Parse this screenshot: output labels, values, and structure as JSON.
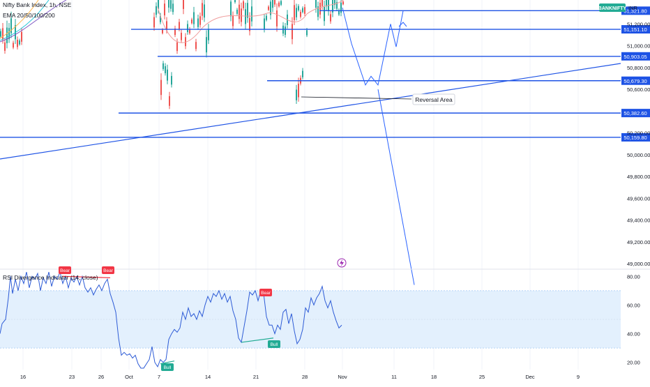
{
  "header": {
    "symbol_line": "Nifty Bank Index, 1h, NSE",
    "indicator_line": "EMA 20/50/100/200",
    "ticker_badge": "BANKNIFTY",
    "currency": "INR"
  },
  "rsi_panel": {
    "title": "RSI Divergence Indicator (14, close)",
    "labels": [
      {
        "text": "Bear",
        "kind": "bear"
      },
      {
        "text": "Bear",
        "kind": "bear"
      },
      {
        "text": "Bear",
        "kind": "bear"
      },
      {
        "text": "Bull",
        "kind": "bull"
      },
      {
        "text": "Bull",
        "kind": "bull"
      }
    ]
  },
  "annotation": {
    "text": "Reversal Area"
  },
  "colors": {
    "up": "#26a69a",
    "down": "#ef5350",
    "line": "#2962ff",
    "level": "#1e53e5",
    "rsi": "#2d5bd6",
    "bear": "#f23645",
    "bull": "#22ab94"
  },
  "chart_data": [
    {
      "type": "line",
      "title": "Nifty Bank Index, 1h, NSE",
      "xlabel": "",
      "ylabel": "",
      "x_tick_labels": [
        "16",
        "23",
        "26",
        "Oct",
        "7",
        "14",
        "21",
        "28",
        "Nov",
        "11",
        "18",
        "25",
        "Dec",
        "9"
      ],
      "y_tick_labels": [
        "51,200.00",
        "51,000.00",
        "50,800.00",
        "50,600.00",
        "50,200.00",
        "50,000.00",
        "49,800.00",
        "49,600.00",
        "49,400.00",
        "49,200.00",
        "49,000.00"
      ],
      "ylim": [
        48950,
        51420
      ],
      "horizontal_levels": [
        {
          "value": 51321.8,
          "label": "51,321.80"
        },
        {
          "value": 51151.1,
          "label": "51,151.10"
        },
        {
          "value": 50903.05,
          "label": "50,903.05"
        },
        {
          "value": 50679.3,
          "label": "50,679.30"
        },
        {
          "value": 50382.6,
          "label": "50,382.60"
        },
        {
          "value": 50159.8,
          "label": "50,159.80"
        }
      ],
      "projected_path": [
        {
          "x": "Nov",
          "y": 51350
        },
        {
          "x": "Nov",
          "y": 51020
        },
        {
          "x": "Nov",
          "y": 50640
        },
        {
          "x": "Nov",
          "y": 50720
        },
        {
          "x": "Nov",
          "y": 50640
        },
        {
          "x": "Nov",
          "y": 51200
        },
        {
          "x": "11",
          "y": 50990
        },
        {
          "x": "11",
          "y": 51320
        }
      ],
      "projected_drop": [
        {
          "x": "Nov",
          "y": 50600
        },
        {
          "x": "18",
          "y": 48780
        }
      ]
    },
    {
      "type": "line",
      "title": "RSI Divergence Indicator (14, close)",
      "y_tick_labels": [
        "80.00",
        "60.00",
        "40.00",
        "20.00"
      ],
      "ylim": [
        15,
        85
      ],
      "band": [
        30,
        70
      ],
      "rsi": [
        [
          0,
          40
        ],
        [
          3,
          47
        ],
        [
          8,
          50
        ],
        [
          12,
          65
        ],
        [
          15,
          80
        ],
        [
          18,
          68
        ],
        [
          22,
          78
        ],
        [
          26,
          70
        ],
        [
          30,
          80
        ],
        [
          34,
          75
        ],
        [
          38,
          83
        ],
        [
          42,
          72
        ],
        [
          46,
          80
        ],
        [
          50,
          78
        ],
        [
          54,
          82
        ],
        [
          58,
          70
        ],
        [
          62,
          79
        ],
        [
          66,
          75
        ],
        [
          70,
          83
        ],
        [
          74,
          73
        ],
        [
          78,
          80
        ],
        [
          82,
          78
        ],
        [
          86,
          83
        ],
        [
          90,
          75
        ],
        [
          94,
          80
        ],
        [
          98,
          72
        ],
        [
          102,
          79
        ],
        [
          106,
          76
        ],
        [
          110,
          80
        ],
        [
          114,
          74
        ],
        [
          118,
          80
        ],
        [
          122,
          72
        ],
        [
          126,
          69
        ],
        [
          130,
          72
        ],
        [
          134,
          67
        ],
        [
          138,
          71
        ],
        [
          142,
          74
        ],
        [
          146,
          70
        ],
        [
          150,
          75
        ],
        [
          154,
          78
        ],
        [
          158,
          68
        ],
        [
          162,
          62
        ],
        [
          166,
          55
        ],
        [
          170,
          37
        ],
        [
          174,
          25
        ],
        [
          178,
          27
        ],
        [
          182,
          25
        ],
        [
          186,
          26
        ],
        [
          190,
          23
        ],
        [
          194,
          25
        ],
        [
          198,
          19
        ],
        [
          202,
          16
        ],
        [
          206,
          16
        ],
        [
          210,
          19
        ],
        [
          214,
          22
        ],
        [
          218,
          31
        ],
        [
          222,
          20
        ],
        [
          226,
          17
        ],
        [
          230,
          22
        ],
        [
          234,
          20
        ],
        [
          238,
          22
        ],
        [
          242,
          36
        ],
        [
          246,
          40
        ],
        [
          250,
          43
        ],
        [
          254,
          41
        ],
        [
          258,
          44
        ],
        [
          262,
          55
        ],
        [
          266,
          50
        ],
        [
          270,
          58
        ],
        [
          274,
          52
        ],
        [
          278,
          54
        ],
        [
          282,
          50
        ],
        [
          286,
          56
        ],
        [
          290,
          52
        ],
        [
          294,
          60
        ],
        [
          298,
          66
        ],
        [
          302,
          62
        ],
        [
          306,
          68
        ],
        [
          310,
          66
        ],
        [
          314,
          70
        ],
        [
          318,
          64
        ],
        [
          322,
          68
        ],
        [
          326,
          62
        ],
        [
          330,
          66
        ],
        [
          334,
          56
        ],
        [
          338,
          50
        ],
        [
          342,
          37
        ],
        [
          346,
          34
        ],
        [
          350,
          45
        ],
        [
          354,
          56
        ],
        [
          358,
          69
        ],
        [
          362,
          67
        ],
        [
          366,
          70
        ],
        [
          370,
          63
        ],
        [
          374,
          70
        ],
        [
          378,
          68
        ],
        [
          382,
          52
        ],
        [
          386,
          46
        ],
        [
          390,
          46
        ],
        [
          394,
          40
        ],
        [
          398,
          46
        ],
        [
          402,
          43
        ],
        [
          406,
          55
        ],
        [
          410,
          57
        ],
        [
          414,
          47
        ],
        [
          418,
          54
        ],
        [
          422,
          42
        ],
        [
          426,
          33
        ],
        [
          430,
          36
        ],
        [
          434,
          43
        ],
        [
          438,
          58
        ],
        [
          442,
          55
        ],
        [
          446,
          65
        ],
        [
          450,
          60
        ],
        [
          454,
          65
        ],
        [
          458,
          68
        ],
        [
          462,
          73
        ],
        [
          466,
          63
        ],
        [
          470,
          58
        ],
        [
          474,
          63
        ],
        [
          478,
          55
        ],
        [
          482,
          49
        ],
        [
          486,
          44
        ],
        [
          490,
          46
        ]
      ],
      "divergence_lines": [
        {
          "kind": "bear",
          "from": [
            90,
            80
          ],
          "to": [
            158,
            79
          ]
        },
        {
          "kind": "bull",
          "from": [
            230,
            19
          ],
          "to": [
            250,
            21
          ]
        },
        {
          "kind": "bull",
          "from": [
            346,
            34
          ],
          "to": [
            392,
            37
          ]
        }
      ]
    }
  ]
}
